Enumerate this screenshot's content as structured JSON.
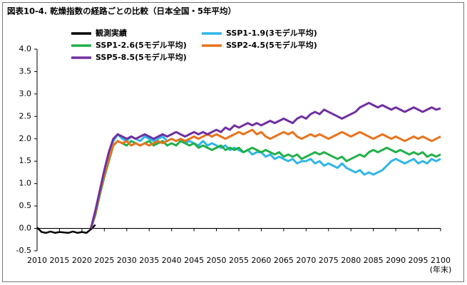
{
  "chart_data": {
    "type": "line",
    "title": "図表10-4. 乾燥指数の経路ごとの比較（日本全国・5年平均）",
    "x_unit": "(年末)",
    "x": [
      2010,
      2011,
      2012,
      2013,
      2014,
      2015,
      2016,
      2017,
      2018,
      2019,
      2020,
      2021,
      2022,
      2023,
      2024,
      2025,
      2026,
      2027,
      2028,
      2029,
      2030,
      2031,
      2032,
      2033,
      2034,
      2035,
      2036,
      2037,
      2038,
      2039,
      2040,
      2041,
      2042,
      2043,
      2044,
      2045,
      2046,
      2047,
      2048,
      2049,
      2050,
      2051,
      2052,
      2053,
      2054,
      2055,
      2056,
      2057,
      2058,
      2059,
      2060,
      2061,
      2062,
      2063,
      2064,
      2065,
      2066,
      2067,
      2068,
      2069,
      2070,
      2071,
      2072,
      2073,
      2074,
      2075,
      2076,
      2077,
      2078,
      2079,
      2080,
      2081,
      2082,
      2083,
      2084,
      2085,
      2086,
      2087,
      2088,
      2089,
      2090,
      2091,
      2092,
      2093,
      2094,
      2095,
      2096,
      2097,
      2098,
      2099,
      2100
    ],
    "xlim": [
      2010,
      2100
    ],
    "xticks": [
      2010,
      2015,
      2020,
      2025,
      2030,
      2035,
      2040,
      2045,
      2050,
      2055,
      2060,
      2065,
      2070,
      2075,
      2080,
      2085,
      2090,
      2095,
      2100
    ],
    "ylim": [
      -0.5,
      4.0
    ],
    "yticks": [
      -0.5,
      {
        "value": 0,
        "label": "0.0"
      },
      0.5,
      {
        "value": 1,
        "label": "1.0"
      },
      1.5,
      {
        "value": 2,
        "label": "2.0"
      },
      2.5,
      {
        "value": 3,
        "label": "3.0"
      },
      3.5,
      {
        "value": 4,
        "label": "4.0"
      }
    ],
    "series": [
      {
        "name": "観測実績",
        "color": "#000000",
        "values": [
          0.02,
          -0.08,
          -0.1,
          -0.07,
          -0.1,
          -0.08,
          -0.09,
          -0.1,
          -0.07,
          -0.1,
          -0.08,
          -0.1,
          -0.02,
          0.08,
          null,
          null,
          null,
          null,
          null,
          null,
          null,
          null,
          null,
          null,
          null,
          null,
          null,
          null,
          null,
          null,
          null,
          null,
          null,
          null,
          null,
          null,
          null,
          null,
          null,
          null,
          null,
          null,
          null,
          null,
          null,
          null,
          null,
          null,
          null,
          null,
          null,
          null,
          null,
          null,
          null,
          null,
          null,
          null,
          null,
          null,
          null,
          null,
          null,
          null,
          null,
          null,
          null,
          null,
          null,
          null,
          null,
          null,
          null,
          null,
          null,
          null,
          null,
          null,
          null,
          null,
          null,
          null,
          null,
          null,
          null,
          null,
          null,
          null,
          null,
          null,
          null
        ]
      },
      {
        "name": "SSP1-1.9(3モデル平均)",
        "color": "#2fb5e8",
        "values": [
          null,
          null,
          null,
          null,
          null,
          null,
          null,
          null,
          null,
          null,
          null,
          null,
          0.0,
          0.35,
          0.8,
          1.2,
          1.6,
          1.95,
          2.1,
          2.0,
          1.95,
          2.05,
          2.0,
          1.95,
          2.05,
          2.0,
          1.95,
          2.0,
          2.05,
          1.95,
          2.0,
          1.95,
          2.0,
          1.9,
          1.95,
          1.9,
          1.85,
          1.95,
          1.85,
          1.9,
          1.85,
          1.8,
          1.85,
          1.75,
          1.8,
          1.75,
          1.7,
          1.75,
          1.65,
          1.7,
          1.7,
          1.6,
          1.65,
          1.55,
          1.6,
          1.55,
          1.5,
          1.55,
          1.45,
          1.5,
          1.5,
          1.55,
          1.45,
          1.5,
          1.4,
          1.45,
          1.4,
          1.35,
          1.45,
          1.35,
          1.3,
          1.25,
          1.3,
          1.2,
          1.25,
          1.2,
          1.25,
          1.3,
          1.4,
          1.5,
          1.55,
          1.5,
          1.45,
          1.5,
          1.55,
          1.45,
          1.5,
          1.45,
          1.55,
          1.5,
          1.55
        ]
      },
      {
        "name": "SSP1-2.6(5モデル平均)",
        "color": "#22b04a",
        "values": [
          null,
          null,
          null,
          null,
          null,
          null,
          null,
          null,
          null,
          null,
          null,
          null,
          0.0,
          0.3,
          0.75,
          1.15,
          1.5,
          1.85,
          1.95,
          1.9,
          1.85,
          1.95,
          1.9,
          1.85,
          1.9,
          1.95,
          1.85,
          1.9,
          1.95,
          1.85,
          1.9,
          1.85,
          1.95,
          1.9,
          1.85,
          1.9,
          1.8,
          1.85,
          1.8,
          1.75,
          1.8,
          1.85,
          1.75,
          1.8,
          1.75,
          1.8,
          1.7,
          1.75,
          1.8,
          1.75,
          1.7,
          1.75,
          1.7,
          1.65,
          1.7,
          1.6,
          1.65,
          1.6,
          1.65,
          1.55,
          1.6,
          1.65,
          1.7,
          1.65,
          1.7,
          1.65,
          1.6,
          1.55,
          1.6,
          1.5,
          1.55,
          1.6,
          1.65,
          1.6,
          1.7,
          1.75,
          1.7,
          1.75,
          1.8,
          1.75,
          1.7,
          1.75,
          1.7,
          1.65,
          1.7,
          1.65,
          1.7,
          1.6,
          1.65,
          1.6,
          1.65
        ]
      },
      {
        "name": "SSP2-4.5(5モデル平均)",
        "color": "#e8731c",
        "values": [
          null,
          null,
          null,
          null,
          null,
          null,
          null,
          null,
          null,
          null,
          null,
          null,
          0.0,
          0.35,
          0.8,
          1.2,
          1.55,
          1.85,
          1.95,
          1.9,
          1.95,
          1.85,
          1.9,
          1.85,
          1.9,
          1.85,
          1.9,
          1.95,
          1.9,
          1.95,
          2.0,
          1.95,
          2.0,
          1.95,
          2.0,
          2.05,
          2.0,
          2.05,
          2.1,
          2.05,
          2.1,
          2.05,
          2.0,
          2.05,
          2.1,
          2.15,
          2.1,
          2.15,
          2.2,
          2.1,
          2.15,
          2.05,
          2.0,
          2.05,
          2.1,
          2.15,
          2.1,
          2.15,
          2.05,
          2.0,
          2.05,
          2.1,
          2.05,
          2.1,
          2.05,
          2.0,
          2.05,
          2.1,
          2.15,
          2.1,
          2.05,
          2.1,
          2.15,
          2.1,
          2.05,
          2.0,
          2.05,
          2.1,
          2.05,
          2.0,
          2.05,
          2.0,
          1.95,
          2.0,
          2.05,
          2.0,
          2.05,
          2.0,
          1.95,
          2.0,
          2.05
        ]
      },
      {
        "name": "SSP5-8.5(5モデル平均)",
        "color": "#7030a0",
        "values": [
          null,
          null,
          null,
          null,
          null,
          null,
          null,
          null,
          null,
          null,
          null,
          null,
          0.0,
          0.4,
          0.85,
          1.3,
          1.7,
          2.0,
          2.1,
          2.05,
          2.0,
          2.05,
          2.0,
          2.05,
          2.1,
          2.05,
          2.0,
          2.05,
          2.1,
          2.05,
          2.1,
          2.15,
          2.1,
          2.05,
          2.1,
          2.15,
          2.1,
          2.15,
          2.1,
          2.15,
          2.2,
          2.15,
          2.25,
          2.2,
          2.3,
          2.25,
          2.3,
          2.35,
          2.3,
          2.35,
          2.3,
          2.35,
          2.4,
          2.35,
          2.4,
          2.45,
          2.4,
          2.35,
          2.45,
          2.5,
          2.45,
          2.55,
          2.6,
          2.55,
          2.65,
          2.6,
          2.55,
          2.5,
          2.45,
          2.5,
          2.55,
          2.6,
          2.7,
          2.75,
          2.8,
          2.75,
          2.7,
          2.75,
          2.7,
          2.65,
          2.7,
          2.65,
          2.6,
          2.65,
          2.7,
          2.65,
          2.6,
          2.65,
          2.7,
          2.65,
          2.68
        ]
      }
    ]
  }
}
